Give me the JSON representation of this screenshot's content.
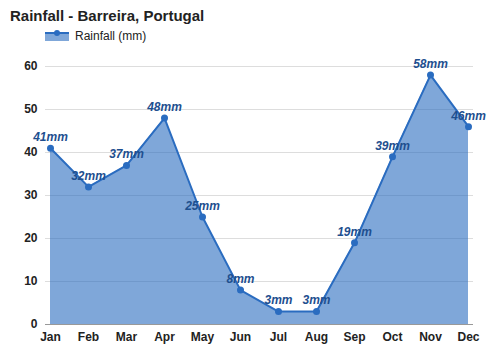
{
  "chart_data": {
    "type": "area",
    "title": "Rainfall - Barreira, Portugal",
    "categories": [
      "Jan",
      "Feb",
      "Mar",
      "Apr",
      "May",
      "Jun",
      "Jul",
      "Aug",
      "Sep",
      "Oct",
      "Nov",
      "Dec"
    ],
    "series": [
      {
        "name": "Rainfall (mm)",
        "color": "#2a6cc0",
        "values": [
          41,
          32,
          37,
          48,
          25,
          8,
          3,
          3,
          19,
          39,
          58,
          46
        ],
        "value_labels": [
          "41mm",
          "32mm",
          "37mm",
          "48mm",
          "25mm",
          "8mm",
          "3mm",
          "3mm",
          "19mm",
          "39mm",
          "58mm",
          "46mm"
        ]
      }
    ],
    "ylim": [
      0,
      60
    ],
    "yticks": [
      0,
      10,
      20,
      30,
      40,
      50,
      60
    ],
    "grid": true,
    "data_labels": true,
    "legend": "top-left"
  }
}
